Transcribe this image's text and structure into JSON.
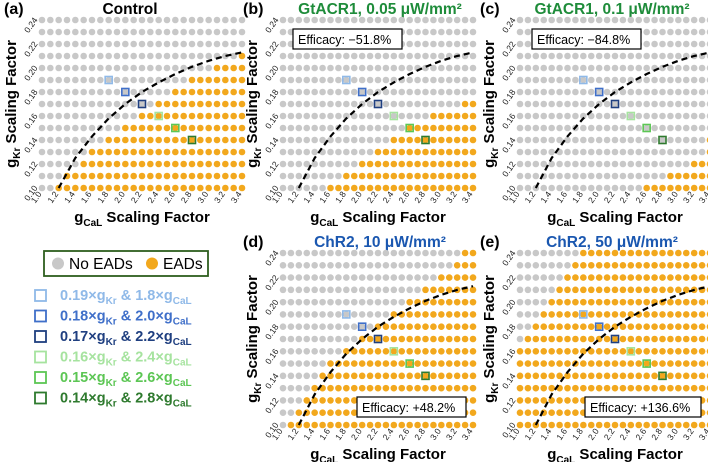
{
  "figure": {
    "legend": {
      "no_eads": "No EADs",
      "eads": "EADs",
      "no_eads_color": "#c8c8c8",
      "eads_color": "#f2a81d"
    },
    "highlight_items": [
      {
        "gkr": "0.19",
        "gcal": "1.8",
        "color": "#8fb9e8"
      },
      {
        "gkr": "0.18",
        "gcal": "2.0",
        "color": "#3f6fc9"
      },
      {
        "gkr": "0.17",
        "gcal": "2.2",
        "color": "#1f3f80"
      },
      {
        "gkr": "0.16",
        "gcal": "2.4",
        "color": "#a6e39f"
      },
      {
        "gkr": "0.15",
        "gcal": "2.6",
        "color": "#5cc654"
      },
      {
        "gkr": "0.14",
        "gcal": "2.8",
        "color": "#2e7a2e"
      }
    ],
    "x_ticks": [
      "1.0",
      "1.2",
      "1.4",
      "1.6",
      "1.8",
      "2.0",
      "2.2",
      "2.4",
      "2.6",
      "2.8",
      "3.0",
      "3.2",
      "3.4"
    ],
    "y_ticks": [
      "0.10",
      "0.12",
      "0.14",
      "0.16",
      "0.18",
      "0.20",
      "0.22",
      "0.24"
    ],
    "xlabel_main": "g",
    "xlabel_sub": "CaL",
    "xlabel_rest": " Scaling Factor",
    "ylabel_main": "g",
    "ylabel_sub": "Kr",
    "ylabel_rest": " Scaling Factor"
  },
  "chart_data": [
    {
      "id": "a",
      "panel_label": "(a)",
      "title": "Control",
      "title_color": "#000000",
      "type": "scatter",
      "efficacy": "",
      "x": [
        1.0,
        3.4
      ],
      "y": [
        0.1,
        0.24
      ],
      "xstep": 0.1,
      "ystep": 0.01,
      "ead_threshold_gcal_by_gkr": [
        1.2,
        1.3,
        1.5,
        1.6,
        1.8,
        2.0,
        2.2,
        2.4,
        2.6,
        2.8,
        3.1,
        3.4,
        null,
        null,
        null
      ],
      "boundary_curve": [
        [
          1.2,
          0.1
        ],
        [
          1.4,
          0.125
        ],
        [
          1.6,
          0.143
        ],
        [
          1.8,
          0.158
        ],
        [
          2.0,
          0.17
        ],
        [
          2.2,
          0.18
        ],
        [
          2.4,
          0.188
        ],
        [
          2.6,
          0.195
        ],
        [
          2.8,
          0.201
        ],
        [
          3.0,
          0.206
        ],
        [
          3.2,
          0.21
        ],
        [
          3.4,
          0.213
        ]
      ]
    },
    {
      "id": "b",
      "panel_label": "(b)",
      "title": "GtACR1, 0.05 μW/mm²",
      "title_color": "#1e8c3a",
      "type": "scatter",
      "efficacy": "Efficacy: −51.8%",
      "x": [
        1.0,
        3.4
      ],
      "y": [
        0.1,
        0.24
      ],
      "xstep": 0.1,
      "ystep": 0.01,
      "ead_threshold_gcal_by_gkr": [
        1.6,
        1.8,
        2.0,
        2.2,
        2.4,
        2.6,
        2.9,
        3.3,
        null,
        null,
        null,
        null,
        null,
        null,
        null
      ],
      "boundary_curve": [
        [
          1.2,
          0.1
        ],
        [
          1.4,
          0.125
        ],
        [
          1.6,
          0.143
        ],
        [
          1.8,
          0.158
        ],
        [
          2.0,
          0.17
        ],
        [
          2.2,
          0.18
        ],
        [
          2.4,
          0.188
        ],
        [
          2.6,
          0.195
        ],
        [
          2.8,
          0.201
        ],
        [
          3.0,
          0.206
        ],
        [
          3.2,
          0.21
        ],
        [
          3.4,
          0.213
        ]
      ]
    },
    {
      "id": "c",
      "panel_label": "(c)",
      "title": "GtACR1, 0.1 μW/mm²",
      "title_color": "#1e8c3a",
      "type": "scatter",
      "efficacy": "Efficacy: −84.8%",
      "x": [
        1.0,
        3.4
      ],
      "y": [
        0.1,
        0.24
      ],
      "xstep": 0.1,
      "ystep": 0.01,
      "ead_threshold_gcal_by_gkr": [
        2.6,
        2.9,
        3.2,
        3.4,
        3.4,
        null,
        null,
        null,
        null,
        null,
        null,
        null,
        null,
        null,
        null
      ],
      "boundary_curve": [
        [
          1.2,
          0.1
        ],
        [
          1.4,
          0.125
        ],
        [
          1.6,
          0.143
        ],
        [
          1.8,
          0.158
        ],
        [
          2.0,
          0.17
        ],
        [
          2.2,
          0.18
        ],
        [
          2.4,
          0.188
        ],
        [
          2.6,
          0.195
        ],
        [
          2.8,
          0.201
        ],
        [
          3.0,
          0.206
        ],
        [
          3.2,
          0.21
        ],
        [
          3.4,
          0.213
        ]
      ]
    },
    {
      "id": "d",
      "panel_label": "(d)",
      "title": "ChR2, 10 μW/mm²",
      "title_color": "#1a57b0",
      "type": "scatter",
      "efficacy": "Efficacy: +48.2%",
      "x": [
        1.0,
        3.4
      ],
      "y": [
        0.1,
        0.24
      ],
      "xstep": 0.1,
      "ystep": 0.01,
      "ead_threshold_gcal_by_gkr": [
        1.1,
        1.2,
        1.3,
        1.4,
        1.5,
        1.6,
        1.8,
        2.0,
        2.2,
        2.4,
        2.6,
        2.8,
        3.0,
        3.2,
        3.3
      ],
      "boundary_curve": [
        [
          1.2,
          0.1
        ],
        [
          1.4,
          0.125
        ],
        [
          1.6,
          0.143
        ],
        [
          1.8,
          0.158
        ],
        [
          2.0,
          0.17
        ],
        [
          2.2,
          0.18
        ],
        [
          2.4,
          0.188
        ],
        [
          2.6,
          0.195
        ],
        [
          2.8,
          0.201
        ],
        [
          3.0,
          0.206
        ],
        [
          3.2,
          0.21
        ],
        [
          3.4,
          0.213
        ]
      ]
    },
    {
      "id": "e",
      "panel_label": "(e)",
      "title": "ChR2, 50 μW/mm²",
      "title_color": "#1a57b0",
      "type": "scatter",
      "efficacy": "Efficacy: +136.6%",
      "x": [
        1.0,
        3.4
      ],
      "y": [
        0.1,
        0.24
      ],
      "xstep": 0.1,
      "ystep": 0.01,
      "ead_threshold_gcal_by_gkr": [
        1.0,
        1.0,
        1.0,
        1.0,
        1.0,
        1.0,
        1.0,
        1.1,
        1.2,
        1.3,
        1.4,
        1.5,
        1.6,
        1.7,
        1.8
      ],
      "boundary_curve": [
        [
          1.2,
          0.1
        ],
        [
          1.4,
          0.125
        ],
        [
          1.6,
          0.143
        ],
        [
          1.8,
          0.158
        ],
        [
          2.0,
          0.17
        ],
        [
          2.2,
          0.18
        ],
        [
          2.4,
          0.188
        ],
        [
          2.6,
          0.195
        ],
        [
          2.8,
          0.201
        ],
        [
          3.0,
          0.206
        ],
        [
          3.2,
          0.21
        ],
        [
          3.4,
          0.213
        ]
      ]
    }
  ]
}
